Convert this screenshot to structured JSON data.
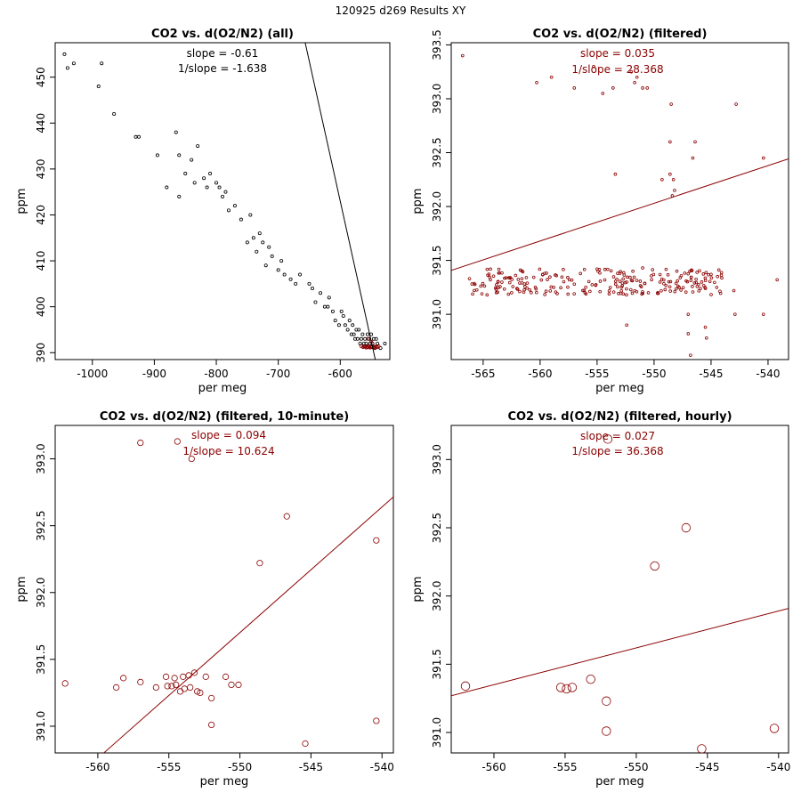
{
  "page_title": "120925   d269   Results XY",
  "colors": {
    "black": "#000000",
    "red": "#8b0000"
  },
  "chart_data": [
    {
      "type": "scatter",
      "title": "CO2 vs. d(O2/N2) (all)",
      "xlabel": "per meg",
      "ylabel": "ppm",
      "xlim": [
        -1060,
        -520
      ],
      "ylim": [
        388.5,
        457.5
      ],
      "xticks": [
        -1000,
        -900,
        -800,
        -700,
        -600
      ],
      "xtick_labels": [
        "-1000",
        "-900",
        "-800",
        "-700",
        "-600"
      ],
      "yticks": [
        390,
        400,
        410,
        420,
        430,
        440,
        450
      ],
      "ytick_labels": [
        "390",
        "400",
        "410",
        "420",
        "430",
        "440",
        "450"
      ],
      "slope_text": "slope = -0.61",
      "inv_slope_text": "1/slope = -1.638",
      "fit_line": {
        "slope": -0.61,
        "intercept": 57.0,
        "color": "#000000"
      },
      "series": [
        {
          "color": "#000000",
          "marker_size": 1.6,
          "points": [
            [
              -1045,
              455
            ],
            [
              -1040,
              452
            ],
            [
              -1030,
              453
            ],
            [
              -985,
              453
            ],
            [
              -990,
              448
            ],
            [
              -965,
              442
            ],
            [
              -930,
              437
            ],
            [
              -925,
              437
            ],
            [
              -895,
              433
            ],
            [
              -880,
              426
            ],
            [
              -865,
              438
            ],
            [
              -860,
              433
            ],
            [
              -860,
              424
            ],
            [
              -850,
              429
            ],
            [
              -840,
              432
            ],
            [
              -835,
              427
            ],
            [
              -830,
              435
            ],
            [
              -820,
              428
            ],
            [
              -815,
              426
            ],
            [
              -810,
              429
            ],
            [
              -800,
              427
            ],
            [
              -795,
              426
            ],
            [
              -790,
              424
            ],
            [
              -785,
              425
            ],
            [
              -780,
              421
            ],
            [
              -770,
              422
            ],
            [
              -760,
              419
            ],
            [
              -750,
              414
            ],
            [
              -745,
              420
            ],
            [
              -740,
              415
            ],
            [
              -735,
              412
            ],
            [
              -730,
              416
            ],
            [
              -725,
              414
            ],
            [
              -720,
              409
            ],
            [
              -715,
              413
            ],
            [
              -710,
              411
            ],
            [
              -700,
              408
            ],
            [
              -695,
              410
            ],
            [
              -690,
              407
            ],
            [
              -680,
              406
            ],
            [
              -672,
              405
            ],
            [
              -665,
              407
            ],
            [
              -650,
              405
            ],
            [
              -645,
              404
            ],
            [
              -640,
              401
            ],
            [
              -632,
              403
            ],
            [
              -625,
              400
            ],
            [
              -620,
              400
            ],
            [
              -618,
              402
            ],
            [
              -612,
              399
            ],
            [
              -608,
              397
            ],
            [
              -602,
              396
            ],
            [
              -598,
              399
            ],
            [
              -595,
              398
            ],
            [
              -592,
              396
            ],
            [
              -588,
              395
            ],
            [
              -585,
              397
            ],
            [
              -582,
              394
            ],
            [
              -580,
              396
            ],
            [
              -578,
              394
            ],
            [
              -576,
              393
            ],
            [
              -574,
              395
            ],
            [
              -572,
              393
            ],
            [
              -570,
              395
            ],
            [
              -568,
              392
            ],
            [
              -566,
              393
            ],
            [
              -564,
              394
            ],
            [
              -562,
              392
            ],
            [
              -560,
              393
            ],
            [
              -558,
              392
            ],
            [
              -556,
              394
            ],
            [
              -554,
              393
            ],
            [
              -552,
              392
            ],
            [
              -550,
              394
            ],
            [
              -548,
              392
            ],
            [
              -546,
              393
            ],
            [
              -544,
              391
            ],
            [
              -542,
              393
            ],
            [
              -540,
              392
            ],
            [
              -535,
              391
            ],
            [
              -528,
              392
            ]
          ]
        },
        {
          "color": "#8b0000",
          "marker_size": 1.6,
          "points": [
            [
              -566,
              391.4
            ],
            [
              -563,
              391.2
            ],
            [
              -561,
              391.3
            ],
            [
              -558,
              391.1
            ],
            [
              -556,
              391.2
            ],
            [
              -554,
              391.4
            ],
            [
              -552,
              391.1
            ],
            [
              -550,
              391.2
            ],
            [
              -548,
              391.3
            ],
            [
              -546,
              391.2
            ],
            [
              -544,
              391.1
            ],
            [
              -542,
              391.3
            ],
            [
              -540,
              391.2
            ],
            [
              -538,
              391.4
            ],
            [
              -555,
              393.0
            ],
            [
              -550,
              392.4
            ],
            [
              -560,
              391.3
            ],
            [
              -557,
              391.3
            ],
            [
              -553,
              391.2
            ],
            [
              -549,
              391.2
            ],
            [
              -545,
              391.3
            ]
          ]
        }
      ]
    },
    {
      "type": "scatter",
      "title": "CO2 vs. d(O2/N2) (filtered)",
      "xlabel": "per meg",
      "ylabel": "ppm",
      "xlim": [
        -567.8,
        -538.2
      ],
      "ylim": [
        390.58,
        393.52
      ],
      "xticks": [
        -565,
        -560,
        -555,
        -550,
        -545,
        -540
      ],
      "xtick_labels": [
        "-565",
        "-560",
        "-555",
        "-550",
        "-545",
        "-540"
      ],
      "yticks": [
        391.0,
        391.5,
        392.0,
        392.5,
        393.0,
        393.5
      ],
      "ytick_labels": [
        "391.0",
        "391.5",
        "392.0",
        "392.5",
        "393.0",
        "393.5"
      ],
      "slope_text": "slope = 0.035",
      "inv_slope_text": "1/slope = 28.368",
      "fit_line": {
        "slope": 0.035,
        "intercept": 411.28,
        "color": "#8b0000"
      },
      "series": [
        {
          "color": "#8b0000",
          "marker_size": 1.4,
          "points": [
            [
              -566.8,
              393.4
            ],
            [
              -560.3,
              393.15
            ],
            [
              -559.0,
              393.2
            ],
            [
              -557.0,
              393.1
            ],
            [
              -555.3,
              393.3
            ],
            [
              -554.5,
              393.05
            ],
            [
              -553.6,
              393.1
            ],
            [
              -552.0,
              393.25
            ],
            [
              -551.7,
              393.15
            ],
            [
              -551.5,
              393.2
            ],
            [
              -551.0,
              393.1
            ],
            [
              -550.6,
              393.1
            ],
            [
              -548.5,
              392.95
            ],
            [
              -542.8,
              392.95
            ],
            [
              -548.6,
              392.6
            ],
            [
              -546.4,
              392.6
            ],
            [
              -546.6,
              392.45
            ],
            [
              -540.4,
              392.45
            ],
            [
              -553.4,
              392.3
            ],
            [
              -549.3,
              392.25
            ],
            [
              -548.6,
              392.3
            ],
            [
              -548.3,
              392.25
            ],
            [
              -548.2,
              392.15
            ],
            [
              -548.4,
              392.1
            ],
            [
              -547.0,
              391.0
            ],
            [
              -552.4,
              390.9
            ],
            [
              -547.0,
              390.82
            ],
            [
              -545.5,
              390.88
            ],
            [
              -545.4,
              390.78
            ],
            [
              -546.8,
              390.62
            ],
            [
              -542.9,
              391.0
            ],
            [
              -540.4,
              391.0
            ],
            [
              -558.8,
              391.25
            ],
            [
              -557.0,
              391.28
            ],
            [
              -563.7,
              391.3
            ],
            [
              -561.6,
              391.33
            ],
            [
              -559.6,
              391.38
            ],
            [
              -555.0,
              391.42
            ],
            [
              -553.0,
              391.38
            ],
            [
              -551.0,
              391.43
            ],
            [
              -548.0,
              391.4
            ],
            [
              -545.0,
              391.37
            ],
            [
              -539.2,
              391.32
            ],
            [
              -543.0,
              391.22
            ],
            [
              -544.5,
              391.25
            ],
            [
              -562.5,
              391.2
            ],
            [
              -566.2,
              391.33
            ]
          ]
        }
      ],
      "cluster": {
        "x_from": -566.0,
        "x_to": -544.0,
        "y_from": 391.18,
        "y_to": 391.42,
        "count": 230,
        "seed": 7
      }
    },
    {
      "type": "scatter",
      "title": "CO2 vs. d(O2/N2) (filtered, 10-minute)",
      "xlabel": "per meg",
      "ylabel": "ppm",
      "xlim": [
        -563.0,
        -539.2
      ],
      "ylim": [
        390.8,
        393.25
      ],
      "xticks": [
        -560,
        -555,
        -550,
        -545,
        -540
      ],
      "xtick_labels": [
        "-560",
        "-555",
        "-550",
        "-545",
        "-540"
      ],
      "yticks": [
        391.0,
        391.5,
        392.0,
        392.5,
        393.0
      ],
      "ytick_labels": [
        "391.0",
        "391.5",
        "392.0",
        "392.5",
        "393.0"
      ],
      "slope_text": "slope = 0.094",
      "inv_slope_text": "1/slope = 10.624",
      "fit_line": {
        "slope": 0.094,
        "intercept": 443.4,
        "color": "#8b0000"
      },
      "series": [
        {
          "color": "#8b0000",
          "marker_size": 3.2,
          "points": [
            [
              -557.0,
              393.12
            ],
            [
              -554.4,
              393.13
            ],
            [
              -553.4,
              393.0
            ],
            [
              -546.7,
              392.57
            ],
            [
              -540.4,
              392.39
            ],
            [
              -548.6,
              392.22
            ],
            [
              -562.3,
              391.32
            ],
            [
              -558.2,
              391.36
            ],
            [
              -557.0,
              391.33
            ],
            [
              -558.7,
              391.29
            ],
            [
              -555.2,
              391.37
            ],
            [
              -554.6,
              391.36
            ],
            [
              -554.0,
              391.37
            ],
            [
              -553.6,
              391.38
            ],
            [
              -553.2,
              391.4
            ],
            [
              -552.4,
              391.37
            ],
            [
              -551.0,
              391.37
            ],
            [
              -555.9,
              391.29
            ],
            [
              -555.1,
              391.3
            ],
            [
              -554.8,
              391.3
            ],
            [
              -554.5,
              391.31
            ],
            [
              -553.9,
              391.28
            ],
            [
              -553.5,
              391.29
            ],
            [
              -553.0,
              391.26
            ],
            [
              -552.8,
              391.25
            ],
            [
              -550.6,
              391.31
            ],
            [
              -550.1,
              391.31
            ],
            [
              -552.0,
              391.21
            ],
            [
              -554.2,
              391.26
            ],
            [
              -540.4,
              391.04
            ],
            [
              -552.0,
              391.01
            ],
            [
              -545.4,
              390.87
            ]
          ]
        }
      ]
    },
    {
      "type": "scatter",
      "title": "CO2 vs. d(O2/N2) (filtered, hourly)",
      "xlabel": "per meg",
      "ylabel": "ppm",
      "xlim": [
        -563.0,
        -539.3
      ],
      "ylim": [
        390.85,
        393.25
      ],
      "xticks": [
        -560,
        -555,
        -550,
        -545,
        -540
      ],
      "xtick_labels": [
        "-560",
        "-555",
        "-550",
        "-545",
        "-540"
      ],
      "yticks": [
        391.0,
        391.5,
        392.0,
        392.5,
        393.0
      ],
      "ytick_labels": [
        "391.0",
        "391.5",
        "392.0",
        "392.5",
        "393.0"
      ],
      "slope_text": "slope = 0.027",
      "inv_slope_text": "1/slope = 36.368",
      "fit_line": {
        "slope": 0.027,
        "intercept": 406.47,
        "color": "#8b0000"
      },
      "series": [
        {
          "color": "#8b0000",
          "marker_size": 4.8,
          "points": [
            [
              -552.0,
              393.15
            ],
            [
              -546.5,
              392.5
            ],
            [
              -548.7,
              392.22
            ],
            [
              -562.0,
              391.34
            ],
            [
              -555.3,
              391.33
            ],
            [
              -554.9,
              391.32
            ],
            [
              -554.5,
              391.33
            ],
            [
              -553.2,
              391.39
            ],
            [
              -552.1,
              391.23
            ],
            [
              -552.1,
              391.01
            ],
            [
              -540.3,
              391.03
            ],
            [
              -545.4,
              390.88
            ]
          ]
        }
      ]
    }
  ]
}
